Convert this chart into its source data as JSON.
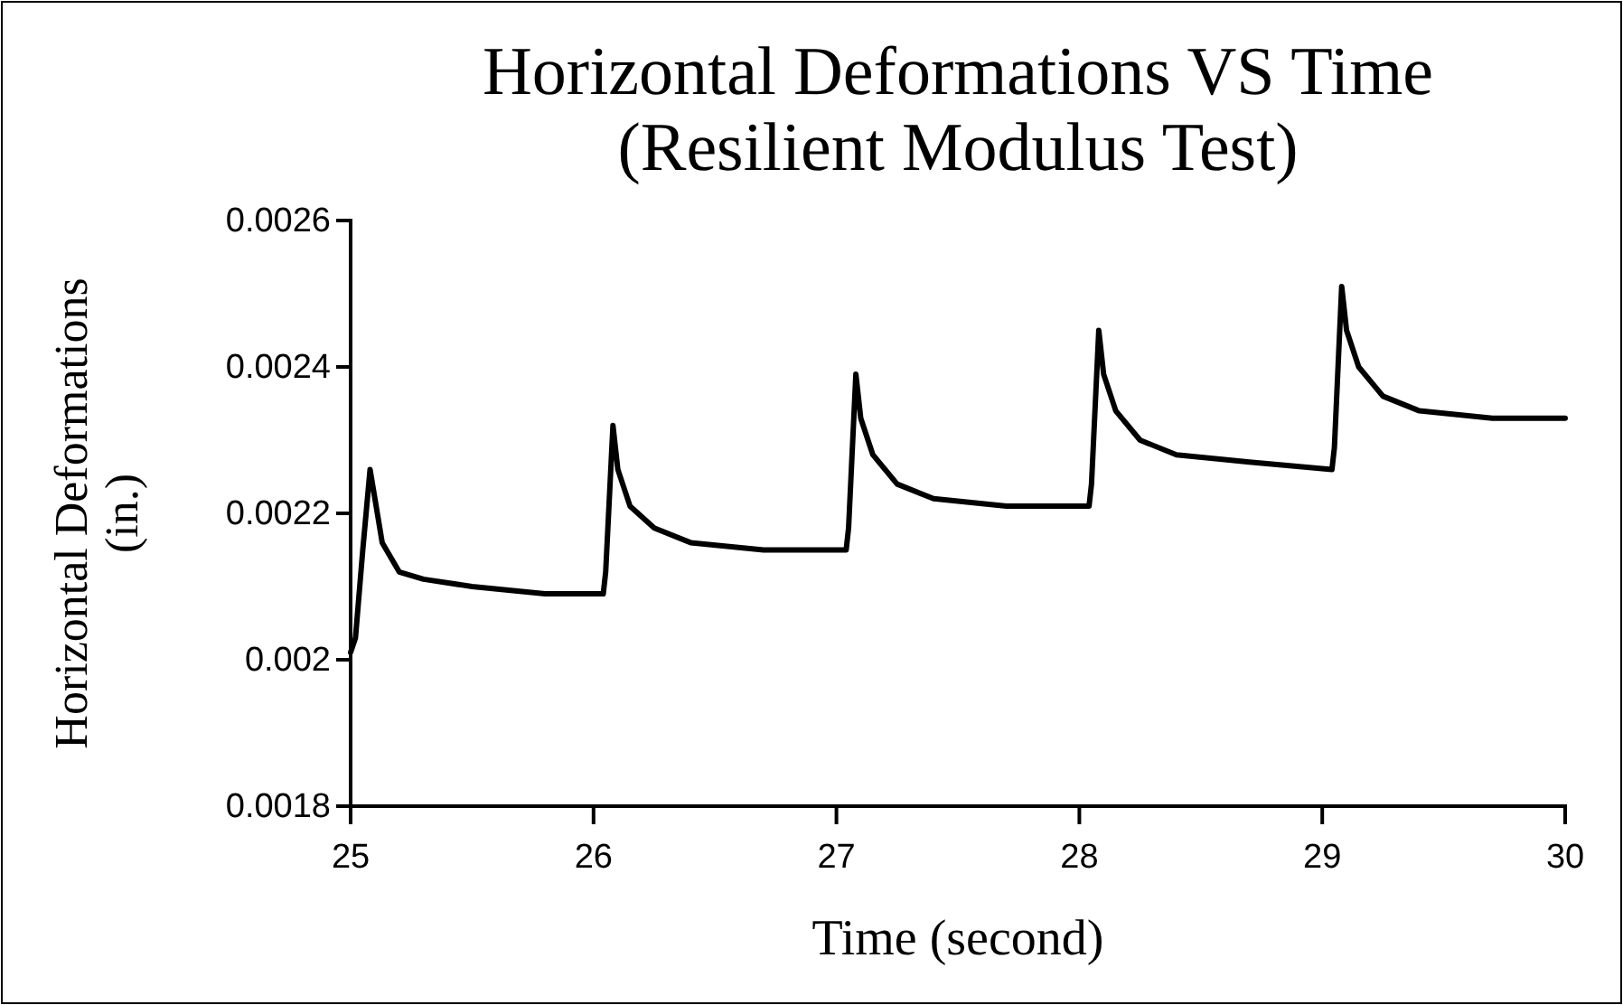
{
  "chart_data": {
    "type": "line",
    "title": "Horizontal Deformations VS Time\n(Resilient Modulus Test)",
    "xlabel": "Time (second)",
    "ylabel": "Horizontal Deformations (in.)",
    "xlim": [
      25,
      30
    ],
    "xticks": [
      25,
      26,
      27,
      28,
      29,
      30
    ],
    "ylim": [
      0.0018,
      0.0026
    ],
    "yticks": [
      0.0018,
      0.002,
      0.0022,
      0.0024,
      0.0026
    ],
    "grid": false,
    "marker": "none",
    "line_style": "solid",
    "series": [
      {
        "color": "#000000",
        "x": [
          25.0,
          25.02,
          25.05,
          25.08,
          25.1,
          25.13,
          25.2,
          25.3,
          25.5,
          25.8,
          26.04,
          26.05,
          26.08,
          26.1,
          26.15,
          26.25,
          26.4,
          26.7,
          27.04,
          27.05,
          27.08,
          27.1,
          27.15,
          27.25,
          27.4,
          27.7,
          28.04,
          28.05,
          28.08,
          28.1,
          28.15,
          28.25,
          28.4,
          28.7,
          29.04,
          29.05,
          29.08,
          29.1,
          29.15,
          29.25,
          29.4,
          29.7,
          30.0
        ],
        "values": [
          0.00201,
          0.00203,
          0.00215,
          0.00226,
          0.00222,
          0.00216,
          0.00212,
          0.00211,
          0.0021,
          0.00209,
          0.00209,
          0.00212,
          0.00232,
          0.00226,
          0.00221,
          0.00218,
          0.00216,
          0.00215,
          0.00215,
          0.00218,
          0.00239,
          0.00233,
          0.00228,
          0.00224,
          0.00222,
          0.00221,
          0.00221,
          0.00224,
          0.00245,
          0.00239,
          0.00234,
          0.0023,
          0.00228,
          0.00227,
          0.00226,
          0.00229,
          0.00251,
          0.00245,
          0.0024,
          0.00236,
          0.00234,
          0.00233,
          0.00233
        ]
      }
    ]
  }
}
